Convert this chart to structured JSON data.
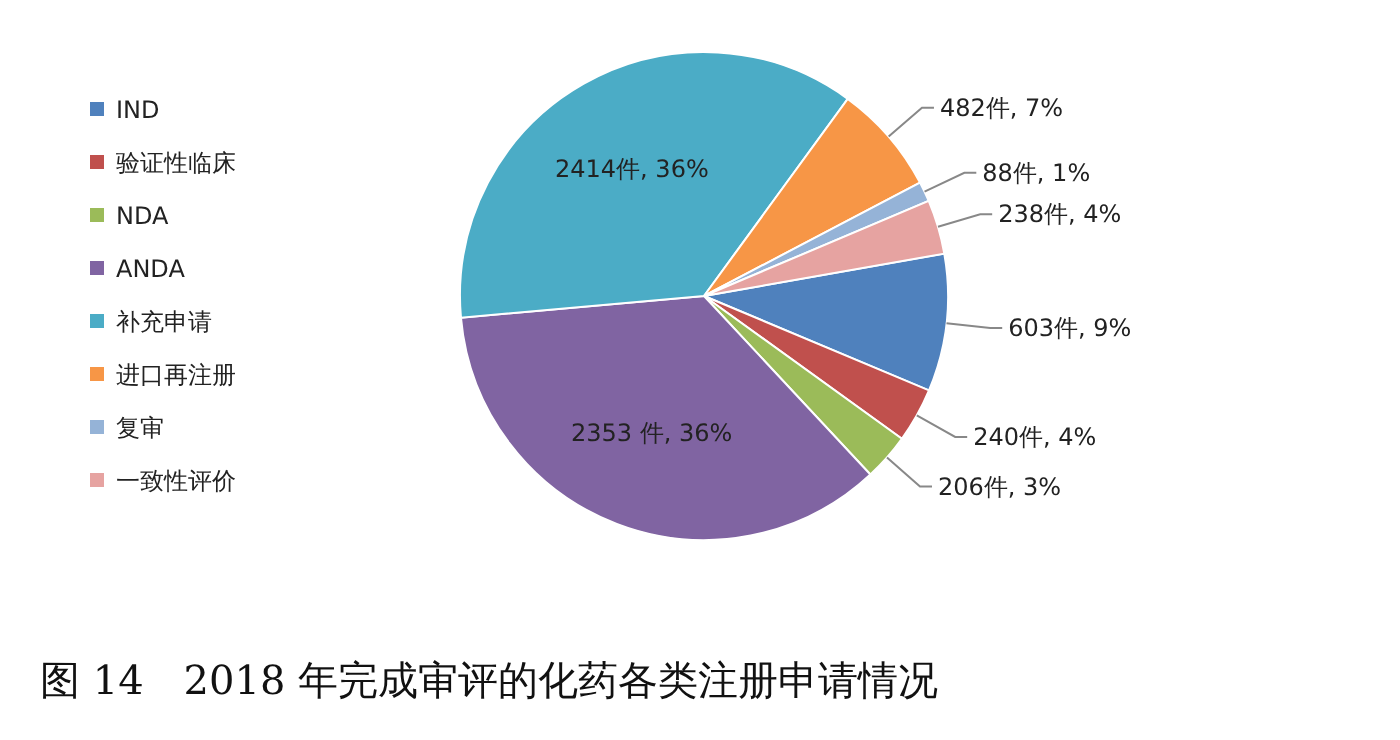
{
  "chart_data": {
    "type": "pie",
    "title": "图 14　2018 年完成审评的化药各类注册申请情况",
    "categories": [
      "IND",
      "验证性临床",
      "NDA",
      "ANDA",
      "补充申请",
      "进口再注册",
      "复审",
      "一致性评价"
    ],
    "values": [
      603,
      240,
      206,
      2353,
      2414,
      482,
      88,
      238
    ],
    "colors": [
      "#4f81bd",
      "#c0504d",
      "#9bbb59",
      "#8064a2",
      "#4bacc6",
      "#f79646",
      "#95b3d7",
      "#e6a3a1"
    ],
    "value_labels": [
      "603件, 9%",
      "240件, 4%",
      "206件, 3%",
      "2353 件, 36%",
      "2414件, 36%",
      "482件, 7%",
      "88件, 1%",
      "238件, 4%"
    ],
    "legend": "left"
  }
}
